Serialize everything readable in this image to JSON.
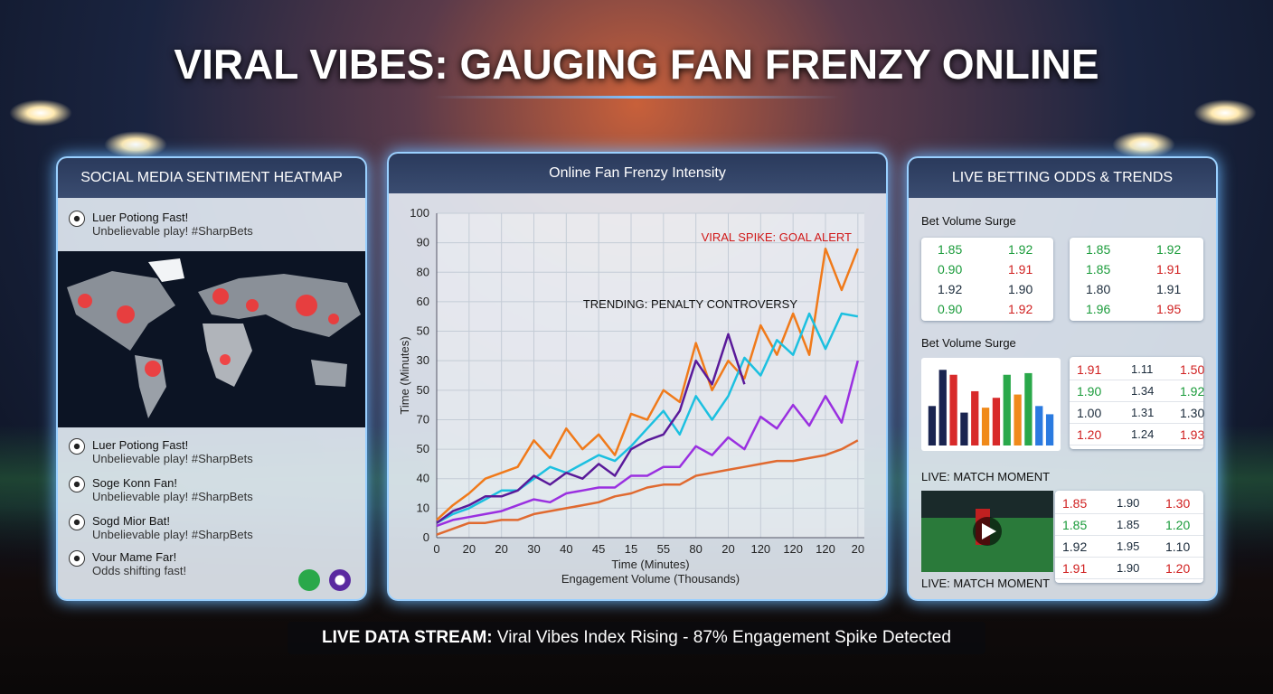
{
  "header": {
    "title": "VIRAL VIBES: GAUGING FAN FRENZY ONLINE"
  },
  "social": {
    "title": "SOCIAL MEDIA SENTIMENT HEATMAP",
    "posts": [
      {
        "user": "Luer Potiong Fast!",
        "text": "Unbelievable play! #SharpBets"
      },
      {
        "user": "Luer Potiong Fast!",
        "text": "Unbelievable play! #SharpBets"
      },
      {
        "user": "Soge Konn Fan!",
        "text": "Unbelievable play! #SharpBets"
      },
      {
        "user": "Sogd Mior Bat!",
        "text": "Unbelievable play! #SharpBets"
      },
      {
        "user": "Vour Mame Far!",
        "text": "Odds shifting fast!"
      }
    ]
  },
  "chart_data": [
    {
      "type": "line",
      "title": "Online Fan Frenzy Intensity",
      "y_label": "Time (Minutes)",
      "x_label": "Time (Minutes)",
      "x_label_2": "Engagement Volume (Thousands)",
      "annotations": [
        "VIRAL SPIKE: GOAL ALERT",
        "TRENDING: PENALTY CONTROVERSY"
      ],
      "x": [
        0,
        0.5,
        1,
        1.5,
        2,
        2.5,
        3,
        3.5,
        4,
        4.5,
        5,
        5.5,
        6,
        6.5,
        7,
        7.5,
        8,
        8.5,
        9,
        9.5,
        10,
        10.5,
        11,
        11.5,
        12,
        12.5,
        13
      ],
      "xlim": [
        0,
        13.2
      ],
      "xticks": [
        0,
        {
          "value": 1,
          "label": "20"
        },
        {
          "value": 2,
          "label": "20"
        },
        {
          "value": 3,
          "label": "30"
        },
        {
          "value": 4,
          "label": "40"
        },
        {
          "value": 5,
          "label": "45"
        },
        {
          "value": 6,
          "label": "15"
        },
        {
          "value": 7,
          "label": "55"
        },
        {
          "value": 8,
          "label": "80"
        },
        {
          "value": 9,
          "label": "20"
        },
        {
          "value": 10,
          "label": "120"
        },
        {
          "value": 11,
          "label": "120"
        },
        {
          "value": 12,
          "label": "120"
        },
        {
          "value": 13,
          "label": "20"
        }
      ],
      "ylim": [
        0,
        110
      ],
      "yticks": [
        0,
        10,
        {
          "value": 20,
          "label": "40"
        },
        {
          "value": 30,
          "label": "50"
        },
        {
          "value": 40,
          "label": "70"
        },
        {
          "value": 50,
          "label": "50"
        },
        {
          "value": 60,
          "label": "30"
        },
        {
          "value": 70,
          "label": "50"
        },
        {
          "value": 80,
          "label": "60"
        },
        {
          "value": 90,
          "label": "80"
        },
        {
          "value": 100,
          "label": "90"
        },
        {
          "value": 110,
          "label": "100"
        }
      ],
      "grid": true,
      "series": [
        {
          "color": "#f07a1a",
          "values": [
            6,
            11,
            15,
            20,
            22,
            24,
            33,
            27,
            37,
            30,
            35,
            28,
            42,
            40,
            50,
            46,
            66,
            50,
            60,
            54,
            72,
            62,
            76,
            62,
            98,
            84,
            98
          ]
        },
        {
          "color": "#1cc0e0",
          "values": [
            5,
            8,
            10,
            13,
            16,
            16,
            20,
            24,
            22,
            25,
            28,
            26,
            31,
            37,
            43,
            35,
            48,
            40,
            48,
            61,
            55,
            67,
            62,
            76,
            64,
            76,
            75
          ]
        },
        {
          "color": "#5a1a9a",
          "values": [
            5,
            9,
            11,
            14,
            14,
            16,
            21,
            18,
            22,
            20,
            25,
            21,
            30,
            33,
            35,
            43,
            60,
            52,
            69,
            52,
            null,
            null,
            null,
            null,
            null,
            null,
            null
          ]
        },
        {
          "color": "#9a30e0",
          "values": [
            4,
            6,
            7,
            8,
            9,
            11,
            13,
            12,
            15,
            16,
            17,
            17,
            21,
            21,
            24,
            24,
            31,
            28,
            34,
            30,
            41,
            37,
            45,
            38,
            48,
            39,
            60
          ]
        },
        {
          "color": "#e06a30",
          "values": [
            1,
            3,
            5,
            5,
            6,
            6,
            8,
            9,
            10,
            11,
            12,
            14,
            15,
            17,
            18,
            18,
            21,
            22,
            23,
            24,
            25,
            26,
            26,
            27,
            28,
            30,
            33
          ]
        }
      ]
    },
    {
      "type": "bar",
      "ylim": [
        0,
        100
      ],
      "values": [
        48,
        92,
        86,
        40,
        66,
        46,
        58,
        86,
        62,
        88,
        48,
        38
      ],
      "colors": [
        "#1a2450",
        "#1a2450",
        "#d82a2a",
        "#1a2450",
        "#d82a2a",
        "#f08a1a",
        "#d82a2a",
        "#2aa84a",
        "#f08a1a",
        "#2aa84a",
        "#2a7ae0",
        "#2a7ae0"
      ]
    }
  ],
  "betting": {
    "title": "LIVE BETTING ODDS & TRENDS",
    "headings": [
      "Bet Volume Surge",
      "Bet Volume Surge",
      "LIVE: MATCH MOMENT"
    ],
    "footer": "LIVE: MATCH MOMENT",
    "boxes": [
      [
        {
          "cells": [
            "1.85",
            "1.92"
          ],
          "color": "#1a9b3a"
        },
        {
          "cells": [
            "0.90",
            "1.91"
          ],
          "color": "#1a9b3a"
        },
        {
          "cells": [
            "1.92",
            "1.90"
          ],
          "color": "#1a2a3a"
        },
        {
          "cells": [
            "0.90",
            "1.92"
          ],
          "color": "#1a9b3a"
        }
      ],
      [
        {
          "cells": [
            "1.85",
            "1.92"
          ],
          "color": "#1a9b3a"
        },
        {
          "cells": [
            "1.85",
            "1.91"
          ],
          "color": "#1a9b3a"
        },
        {
          "cells": [
            "1.80",
            "1.91"
          ],
          "color": "#1a2a3a"
        },
        {
          "cells": [
            "1.96",
            "1.95"
          ],
          "color": "#1a9b3a"
        }
      ]
    ],
    "tables": [
      [
        {
          "cells": [
            "1.91",
            "1.11",
            "1.50"
          ],
          "color": "#d02020"
        },
        {
          "cells": [
            "1.90",
            "1.34",
            "1.92"
          ],
          "color": "#1a9b3a"
        },
        {
          "cells": [
            "1.00",
            "1.31",
            "1.30"
          ],
          "color": "#1a2a3a"
        },
        {
          "cells": [
            "1.20",
            "1.24",
            "1.93"
          ],
          "color": "#d02020"
        }
      ],
      [
        {
          "cells": [
            "1.85",
            "1.90",
            "1.30"
          ],
          "color": "#d02020"
        },
        {
          "cells": [
            "1.85",
            "1.85",
            "1.20"
          ],
          "color": "#1a9b3a"
        },
        {
          "cells": [
            "1.92",
            "1.95",
            "1.10"
          ],
          "color": "#1a2a3a"
        },
        {
          "cells": [
            "1.91",
            "1.90",
            "1.20"
          ],
          "color": "#d02020"
        }
      ]
    ]
  },
  "banner": {
    "label": "LIVE DATA STREAM:",
    "text": "Viral Vibes Index Rising - 87% Engagement Spike Detected"
  }
}
